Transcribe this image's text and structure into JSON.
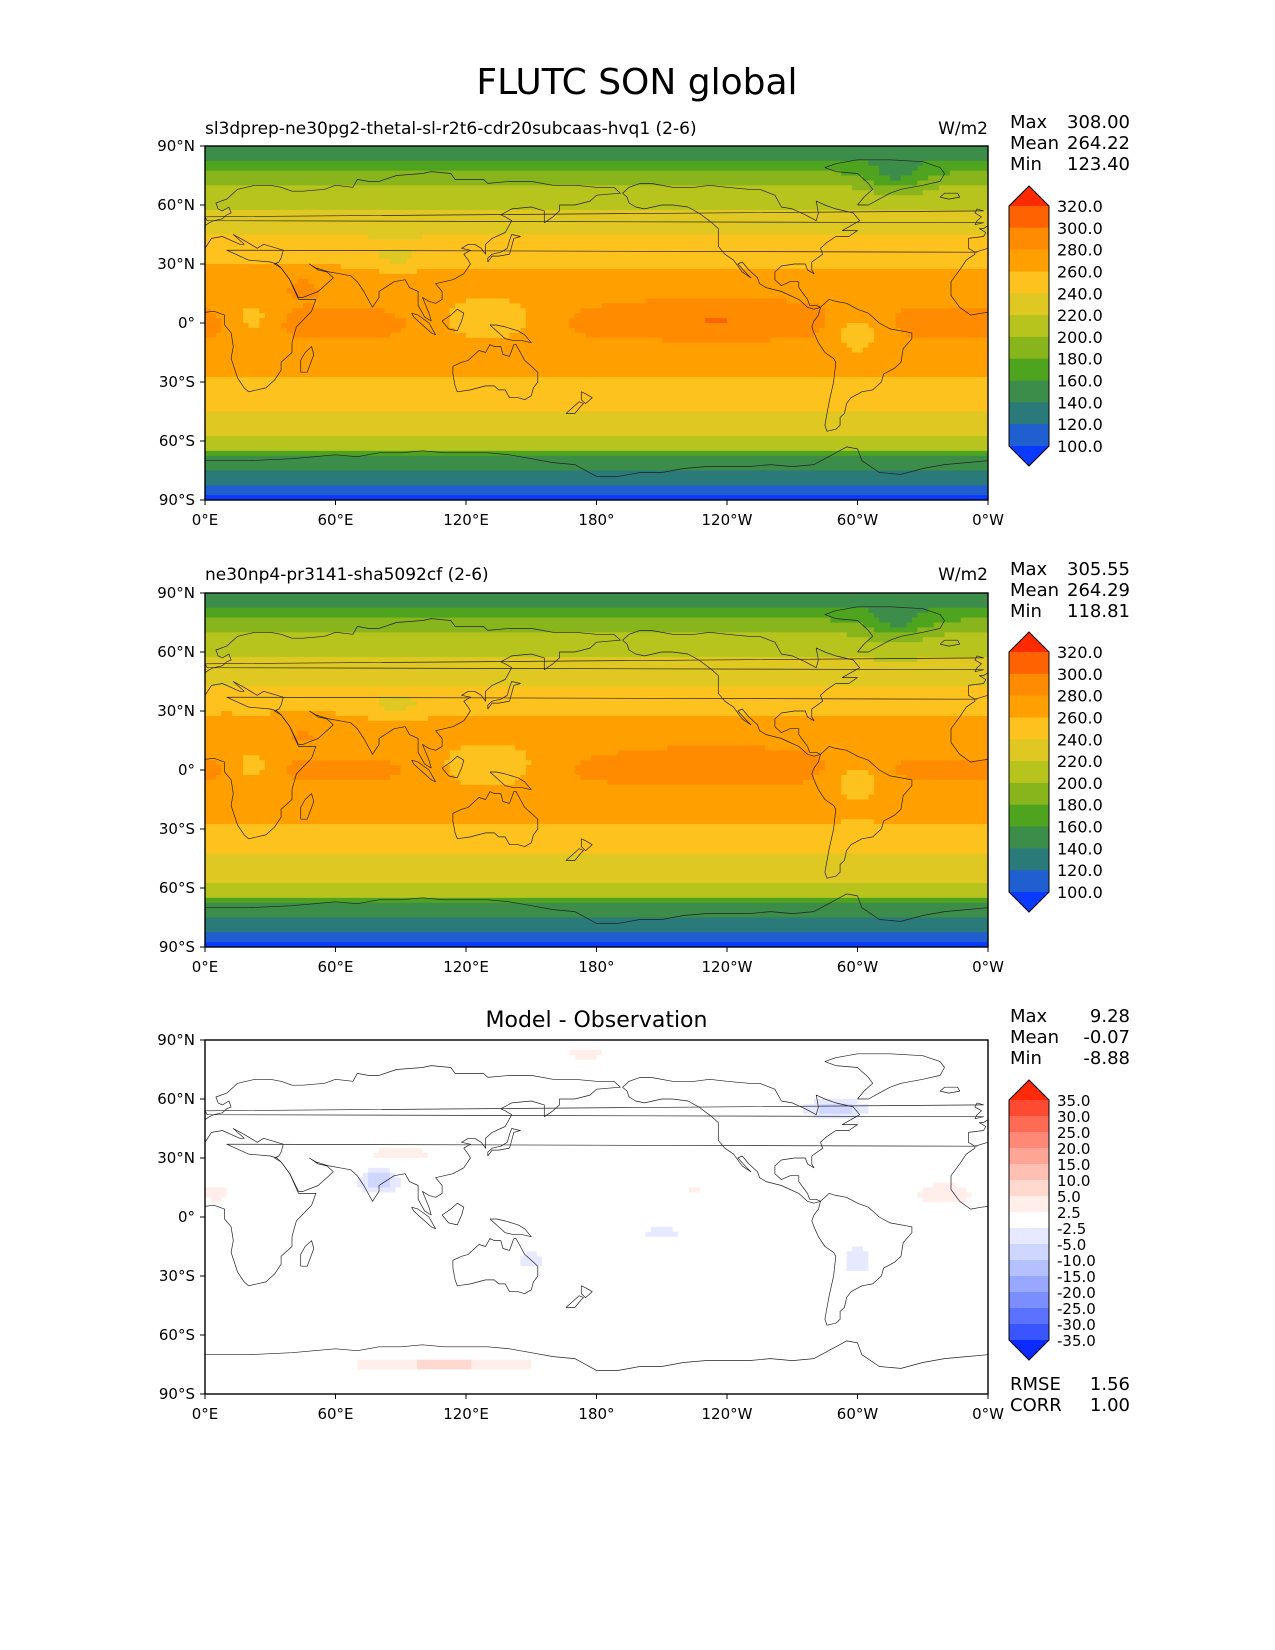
{
  "figure": {
    "title": "FLUTC SON global"
  },
  "chart_data": [
    {
      "type": "heatmap",
      "title": "sl3dprep-ne30pg2-thetal-sl-r2t6-cdr20subcaas-hvq1 (2-6)",
      "units": "W/m2",
      "stats": [
        {
          "label": "Max",
          "value": "308.00"
        },
        {
          "label": "Mean",
          "value": "264.22"
        },
        {
          "label": "Min",
          "value": "123.40"
        }
      ],
      "x_ticks": [
        "0°E",
        "60°E",
        "120°E",
        "180°",
        "120°W",
        "60°W",
        "0°W"
      ],
      "y_ticks": [
        "90°N",
        "60°N",
        "30°N",
        "0°",
        "30°S",
        "60°S",
        "90°S"
      ],
      "xlim": [
        0,
        360
      ],
      "ylim": [
        -90,
        90
      ],
      "colorbar": {
        "levels": [
          "320.0",
          "300.0",
          "280.0",
          "260.0",
          "240.0",
          "220.0",
          "200.0",
          "180.0",
          "160.0",
          "140.0",
          "120.0",
          "100.0"
        ],
        "colors": [
          "#ff2a00",
          "#ff6200",
          "#ff8c00",
          "#ffa000",
          "#fdc21e",
          "#e0c823",
          "#b7c41e",
          "#88b41c",
          "#4ea41e",
          "#3c8c4a",
          "#2a7a7a",
          "#1f5fd0",
          "#0a3aff"
        ],
        "extend": "both"
      },
      "field": "base",
      "anomaly": 0.0
    },
    {
      "type": "heatmap",
      "title": "ne30np4-pr3141-sha5092cf (2-6)",
      "units": "W/m2",
      "stats": [
        {
          "label": "Max",
          "value": "305.55"
        },
        {
          "label": "Mean",
          "value": "264.29"
        },
        {
          "label": "Min",
          "value": "118.81"
        }
      ],
      "x_ticks": [
        "0°E",
        "60°E",
        "120°E",
        "180°",
        "120°W",
        "60°W",
        "0°W"
      ],
      "y_ticks": [
        "90°N",
        "60°N",
        "30°N",
        "0°",
        "30°S",
        "60°S",
        "90°S"
      ],
      "xlim": [
        0,
        360
      ],
      "ylim": [
        -90,
        90
      ],
      "colorbar": {
        "levels": [
          "320.0",
          "300.0",
          "280.0",
          "260.0",
          "240.0",
          "220.0",
          "200.0",
          "180.0",
          "160.0",
          "140.0",
          "120.0",
          "100.0"
        ],
        "colors": [
          "#ff2a00",
          "#ff6200",
          "#ff8c00",
          "#ffa000",
          "#fdc21e",
          "#e0c823",
          "#b7c41e",
          "#88b41c",
          "#4ea41e",
          "#3c8c4a",
          "#2a7a7a",
          "#1f5fd0",
          "#0a3aff"
        ],
        "extend": "both"
      },
      "field": "base",
      "anomaly": -1.0
    },
    {
      "type": "heatmap",
      "title": "Model - Observation",
      "units": "",
      "stats": [
        {
          "label": "Max",
          "value": "9.28"
        },
        {
          "label": "Mean",
          "value": "-0.07"
        },
        {
          "label": "Min",
          "value": "-8.88"
        }
      ],
      "x_ticks": [
        "0°E",
        "60°E",
        "120°E",
        "180°",
        "120°W",
        "60°W",
        "0°W"
      ],
      "y_ticks": [
        "90°N",
        "60°N",
        "30°N",
        "0°",
        "30°S",
        "60°S",
        "90°S"
      ],
      "xlim": [
        0,
        360
      ],
      "ylim": [
        -90,
        90
      ],
      "colorbar": {
        "levels": [
          "35.0",
          "30.0",
          "25.0",
          "20.0",
          "15.0",
          "10.0",
          "5.0",
          "2.5",
          "-2.5",
          "-5.0",
          "-10.0",
          "-15.0",
          "-20.0",
          "-25.0",
          "-30.0",
          "-35.0"
        ],
        "colors": [
          "#ff2a0a",
          "#ff4a33",
          "#ff6a55",
          "#ff8877",
          "#ffa595",
          "#ffc0b4",
          "#ffd8d0",
          "#ffeeea",
          "#ffffff",
          "#e6e9ff",
          "#cfd6ff",
          "#b4c0ff",
          "#98a8ff",
          "#7a8eff",
          "#5a72ff",
          "#3a55ff",
          "#0a2aff"
        ],
        "extend": "both"
      },
      "field": "diff",
      "metrics": [
        {
          "label": "RMSE",
          "value": "1.56"
        },
        {
          "label": "CORR",
          "value": "1.00"
        }
      ]
    }
  ]
}
